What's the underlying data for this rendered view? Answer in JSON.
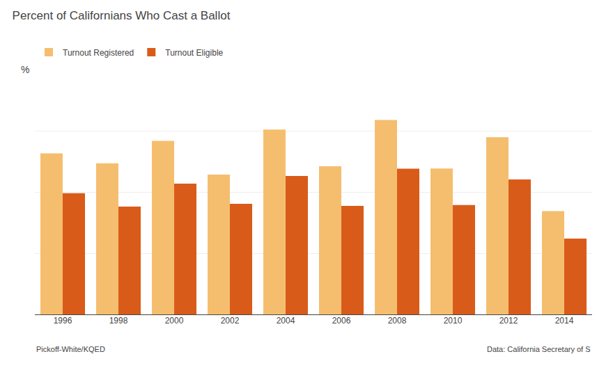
{
  "chart_data": {
    "type": "bar",
    "title": "Percent of Californians Who Cast a Ballot",
    "y_label": "%",
    "annotations": [
      "Pickoff-White/KQED",
      "Data: California Secretary of S"
    ],
    "categories": [
      "1996",
      "1998",
      "2000",
      "2002",
      "2004",
      "2006",
      "2008",
      "2010",
      "2012",
      "2014"
    ],
    "series": [
      {
        "name": "Turnout Registered",
        "color": "#F5BE6E",
        "values": [
          65.8,
          61.7,
          70.9,
          57.1,
          75.5,
          60.5,
          79.4,
          59.6,
          72.4,
          42.2
        ]
      },
      {
        "name": "Turnout Eligible",
        "color": "#D95B1A",
        "values": [
          49.5,
          44.0,
          53.4,
          45.2,
          56.5,
          44.3,
          59.5,
          44.7,
          55.1,
          31.0
        ]
      }
    ],
    "ylim": [
      0,
      100
    ],
    "yticks": [
      0,
      25,
      50,
      75,
      100
    ],
    "grid": true,
    "tick_labels": "x"
  }
}
